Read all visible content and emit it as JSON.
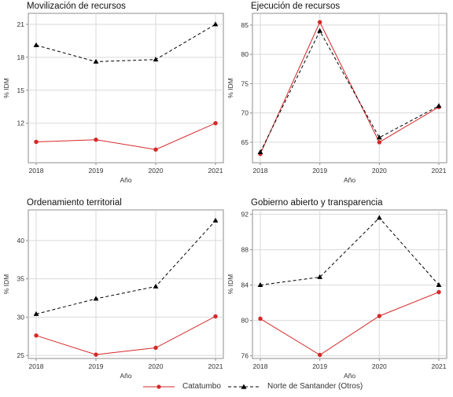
{
  "colors": {
    "catatumbo": "#d62828",
    "norte": "#000000",
    "grid": "#d9d9d9",
    "frame": "#8c8c8c"
  },
  "legend": {
    "catatumbo": "Catatumbo",
    "norte": "Norte de Santander (Otros)"
  },
  "chart_data": [
    {
      "type": "line",
      "title": "Movilización de recursos",
      "xlabel": "Año",
      "ylabel": "% IDM",
      "x": [
        "2018",
        "2019",
        "2020",
        "2021"
      ],
      "ylim": [
        8.4,
        22
      ],
      "yticks": [
        12,
        15,
        18,
        21
      ],
      "grid": true,
      "series": [
        {
          "name": "Catatumbo",
          "values": [
            10.3,
            10.5,
            9.6,
            12.0
          ]
        },
        {
          "name": "Norte de Santander (Otros)",
          "values": [
            19.1,
            17.6,
            17.8,
            21.0
          ]
        }
      ]
    },
    {
      "type": "line",
      "title": "Ejecución de recursos",
      "xlabel": "Año",
      "ylabel": "% IDM",
      "x": [
        "2018",
        "2019",
        "2020",
        "2021"
      ],
      "ylim": [
        61.5,
        87
      ],
      "yticks": [
        65,
        70,
        75,
        80,
        85
      ],
      "grid": true,
      "series": [
        {
          "name": "Catatumbo",
          "values": [
            63.0,
            85.5,
            65.0,
            71.0
          ]
        },
        {
          "name": "Norte de Santander (Otros)",
          "values": [
            63.3,
            84.0,
            65.8,
            71.2
          ]
        }
      ]
    },
    {
      "type": "line",
      "title": "Ordenamiento territorial",
      "xlabel": "Año",
      "ylabel": "% IDM",
      "x": [
        "2018",
        "2019",
        "2020",
        "2021"
      ],
      "ylim": [
        24.6,
        44
      ],
      "yticks": [
        25,
        30,
        35,
        40
      ],
      "grid": true,
      "series": [
        {
          "name": "Catatumbo",
          "values": [
            27.6,
            25.1,
            26.0,
            30.1
          ]
        },
        {
          "name": "Norte de Santander (Otros)",
          "values": [
            30.4,
            32.4,
            34.0,
            42.6
          ]
        }
      ]
    },
    {
      "type": "line",
      "title": "Gobierno abierto y transparencia",
      "xlabel": "Año",
      "ylabel": "% IDM",
      "x": [
        "2018",
        "2019",
        "2020",
        "2021"
      ],
      "ylim": [
        75.7,
        92.5
      ],
      "yticks": [
        76,
        80,
        84,
        88,
        92
      ],
      "grid": true,
      "series": [
        {
          "name": "Catatumbo",
          "values": [
            80.2,
            76.1,
            80.5,
            83.2
          ]
        },
        {
          "name": "Norte de Santander (Otros)",
          "values": [
            84.0,
            84.9,
            91.6,
            84.0
          ]
        }
      ]
    }
  ]
}
